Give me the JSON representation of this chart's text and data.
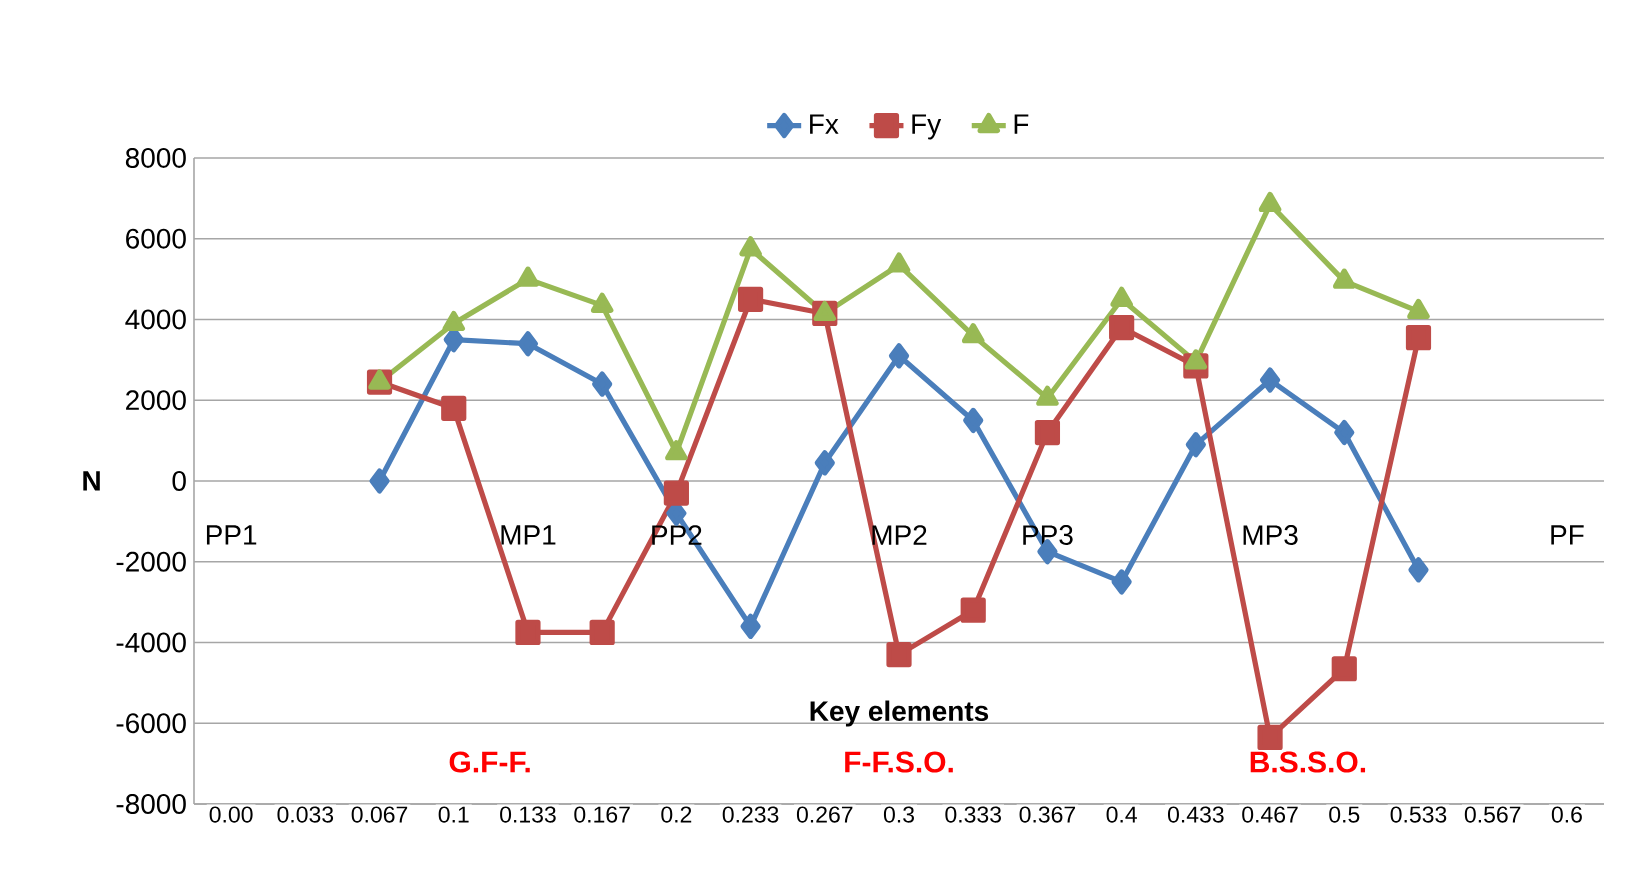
{
  "chart_data": {
    "type": "line",
    "xlabel": "Key elements",
    "ylabel": "N",
    "categories": [
      "0.00",
      "0.033",
      "0.067",
      "0.1",
      "0.133",
      "0.167",
      "0.2",
      "0.233",
      "0.267",
      "0.3",
      "0.333",
      "0.367",
      "0.4",
      "0.433",
      "0.467",
      "0.5",
      "0.533",
      "0.567",
      "0.6"
    ],
    "series": [
      {
        "name": "Fx",
        "color": "#4a7ebb",
        "marker": "diamond",
        "values": [
          null,
          null,
          0,
          3500,
          3400,
          2400,
          -800,
          -3600,
          450,
          3100,
          1500,
          -1750,
          -2500,
          900,
          2500,
          1200,
          -2200,
          null,
          null
        ]
      },
      {
        "name": "Fy",
        "color": "#be4b48",
        "marker": "square",
        "values": [
          null,
          null,
          2450,
          1800,
          -3750,
          -3750,
          -300,
          4500,
          4150,
          -4300,
          -3200,
          1200,
          3800,
          2850,
          -6350,
          -4650,
          3550,
          null,
          null
        ]
      },
      {
        "name": "F",
        "color": "#98b954",
        "marker": "triangle",
        "values": [
          null,
          null,
          2450,
          3900,
          5000,
          4350,
          700,
          5750,
          4150,
          5350,
          3600,
          2050,
          4500,
          2950,
          6850,
          4950,
          4200,
          null,
          null
        ]
      }
    ],
    "ylim": [
      -8000,
      8000
    ],
    "yticks": [
      -8000,
      -6000,
      -4000,
      -2000,
      0,
      2000,
      4000,
      6000,
      8000
    ],
    "grid": "y",
    "legend": "top",
    "annotations": [
      "PP1",
      "MP1",
      "PP2",
      "MP2",
      "PP3",
      "MP3",
      "PF",
      "G.F-F.",
      "F-F.S.O.",
      "B.S.S.O."
    ]
  }
}
